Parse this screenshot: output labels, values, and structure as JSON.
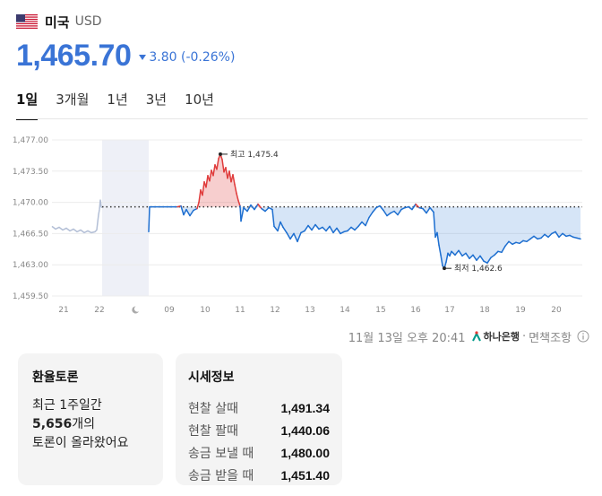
{
  "header": {
    "country": "미국",
    "currency": "USD"
  },
  "quote": {
    "price": "1,465.70",
    "change": "3.80 (-0.26%)",
    "direction": "down"
  },
  "tabs": [
    {
      "label": "1일",
      "active": true
    },
    {
      "label": "3개월",
      "active": false
    },
    {
      "label": "1년",
      "active": false
    },
    {
      "label": "3년",
      "active": false
    },
    {
      "label": "10년",
      "active": false
    }
  ],
  "chart_data": {
    "type": "line",
    "ylim": [
      1459.5,
      1477.0
    ],
    "y_ticks": [
      "1,477.00",
      "1,473.50",
      "1,470.00",
      "1,466.50",
      "1,463.00",
      "1,459.50"
    ],
    "x_ticks": [
      "21",
      "22",
      "moon",
      "09",
      "10",
      "11",
      "12",
      "13",
      "14",
      "15",
      "16",
      "17",
      "18",
      "19",
      "20"
    ],
    "reference": 1469.5,
    "high": {
      "label": "최고 1,475.4",
      "value": 1475.4
    },
    "low": {
      "label": "최저 1,462.6",
      "value": 1462.6
    },
    "colors": {
      "up": "#e03c3c",
      "down": "#1e6fd0",
      "pre": "#b3bfd6",
      "night_band": "#eef0f7"
    }
  },
  "source": {
    "timestamp": "11월 13일 오후 20:41",
    "bank": "하나은행",
    "note": "면책조항"
  },
  "discussion": {
    "title": "환율토론",
    "line1": "최근 1주일간",
    "count": "5,656",
    "line2_suffix": "개의",
    "line3": "토론이 올라왔어요"
  },
  "rate_info": {
    "title": "시세정보",
    "rows": [
      {
        "label": "현찰 살때",
        "value": "1,491.34"
      },
      {
        "label": "현찰 팔때",
        "value": "1,440.06"
      },
      {
        "label": "송금 보낼 때",
        "value": "1,480.00"
      },
      {
        "label": "송금 받을 때",
        "value": "1,451.40"
      }
    ]
  }
}
